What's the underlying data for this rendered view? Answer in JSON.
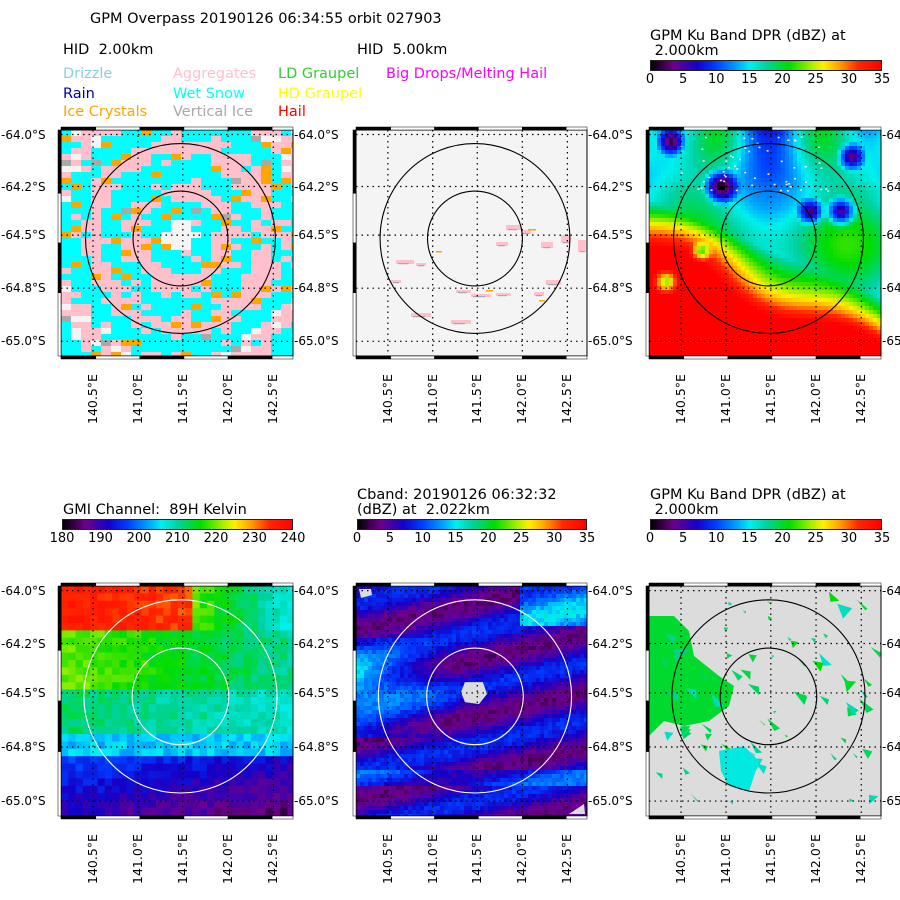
{
  "figure": {
    "title": "GPM Overpass 20190126 06:34:55 orbit 027903"
  },
  "chart_data": [
    {
      "id": "hid-2km",
      "type": "heatmap",
      "title": "HID  2.00km",
      "field": "Hydrometeor ID",
      "legend": [
        {
          "label": "Drizzle",
          "color": "#87ceeb"
        },
        {
          "label": "Rain",
          "color": "#0000a0"
        },
        {
          "label": "Ice Crystals",
          "color": "#ffa500"
        },
        {
          "label": "Aggregates",
          "color": "#ffc0cb"
        },
        {
          "label": "Wet Snow",
          "color": "#00ffff"
        },
        {
          "label": "Vertical Ice",
          "color": "#a9a9a9"
        },
        {
          "label": "LD Graupel",
          "color": "#32cd32"
        },
        {
          "label": "HD Graupel",
          "color": "#ffff00"
        },
        {
          "label": "Hail",
          "color": "#ff0000"
        },
        {
          "label": "Big Drops/Melting Hail",
          "color": "#ff00ff"
        }
      ],
      "dominant_classes": [
        "Wet Snow",
        "Aggregates",
        "Ice Crystals"
      ],
      "ring_color": "#000000",
      "background": "#f4f4f4",
      "lat_ticks": [
        "-64.0°S",
        "-64.2°S",
        "-64.5°S",
        "-64.8°S",
        "-65.0°S"
      ],
      "lon_ticks": [
        "140.5°E",
        "141.0°E",
        "141.5°E",
        "142.0°E",
        "142.5°E"
      ],
      "lat_range": [
        -65.08,
        -63.92
      ],
      "lon_range": [
        140.1,
        142.75
      ]
    },
    {
      "id": "hid-5km",
      "type": "heatmap",
      "title": "HID  5.00km",
      "field": "Hydrometeor ID",
      "dominant_classes": [
        "Aggregates",
        "Vertical Ice",
        "Ice Crystals"
      ],
      "coverage": "sparse",
      "ring_color": "#000000",
      "background": "#f4f4f4",
      "lat_ticks": [
        "-64.0°S",
        "-64.2°S",
        "-64.5°S",
        "-64.8°S",
        "-65.0°S"
      ],
      "lon_ticks": [
        "140.5°E",
        "141.0°E",
        "141.5°E",
        "142.0°E",
        "142.5°E"
      ]
    },
    {
      "id": "ku-dpr-top",
      "type": "heatmap",
      "title": "GPM Ku Band DPR (dBZ) at\n 2.000km",
      "colorbar": {
        "min": 0,
        "max": 35,
        "ticks": [
          "0",
          "5",
          "10",
          "15",
          "20",
          "25",
          "30",
          "35"
        ],
        "cmap": "nipy_spectral-like"
      },
      "description": "Mostly 15-20 dBZ green/cyan field, blue 8-12 dBZ cells in north, 30-35 dBZ red in south-east corner",
      "ring_color": "#000000",
      "lat_ticks": [
        "-64.0°S",
        "-64.2°S",
        "-64.5°S",
        "-64.8°S",
        "-65.0°S"
      ],
      "lon_ticks": [
        "140.5°E",
        "141.0°E",
        "141.5°E",
        "142.0°E",
        "142.5°E"
      ]
    },
    {
      "id": "gmi-89h",
      "type": "heatmap",
      "title": "GMI Channel:  89H Kelvin",
      "colorbar": {
        "min": 180,
        "max": 240,
        "ticks": [
          "180",
          "190",
          "200",
          "210",
          "220",
          "230",
          "240"
        ],
        "cmap": "nipy_spectral-like"
      },
      "description": "~235 K red in north, ~215 K green mid, ~195 K blue in south",
      "ring_color": "#ffffff",
      "lat_ticks": [
        "-64.0°S",
        "-64.2°S",
        "-64.5°S",
        "-64.8°S",
        "-65.0°S"
      ],
      "lon_ticks": [
        "140.5°E",
        "141.0°E",
        "141.5°E",
        "142.0°E",
        "142.5°E"
      ]
    },
    {
      "id": "cband",
      "type": "heatmap",
      "title": "Cband: 20190126 06:32:32\n(dBZ) at  2.022km",
      "colorbar": {
        "min": 0,
        "max": 35,
        "ticks": [
          "0",
          "5",
          "10",
          "15",
          "20",
          "25",
          "30",
          "35"
        ],
        "cmap": "nipy_spectral-like"
      },
      "description": "Mostly 3-10 dBZ purple/blue, 12-18 dBZ cyan streaks in west, missing data at radar center",
      "ring_color": "#ffffff",
      "lat_ticks": [
        "-64.0°S",
        "-64.2°S",
        "-64.5°S",
        "-64.8°S",
        "-65.0°S"
      ],
      "lon_ticks": [
        "140.5°E",
        "141.0°E",
        "141.5°E",
        "142.0°E",
        "142.5°E"
      ]
    },
    {
      "id": "ku-dpr-bottom",
      "type": "heatmap",
      "title": "GPM Ku Band DPR (dBZ) at\n 2.000km",
      "colorbar": {
        "min": 0,
        "max": 35,
        "ticks": [
          "0",
          "5",
          "10",
          "15",
          "20",
          "25",
          "30",
          "35"
        ],
        "cmap": "nipy_spectral-like"
      },
      "description": "Sparse 15-20 dBZ patches over grey background, larger green region in west",
      "ring_color": "#000000",
      "background": "#dcdcdc",
      "lat_ticks": [
        "-64.0°S",
        "-64.2°S",
        "-64.5°S",
        "-64.8°S",
        "-65.0°S"
      ],
      "lon_ticks": [
        "140.5°E",
        "141.0°E",
        "141.5°E",
        "142.0°E",
        "142.5°E"
      ]
    }
  ]
}
